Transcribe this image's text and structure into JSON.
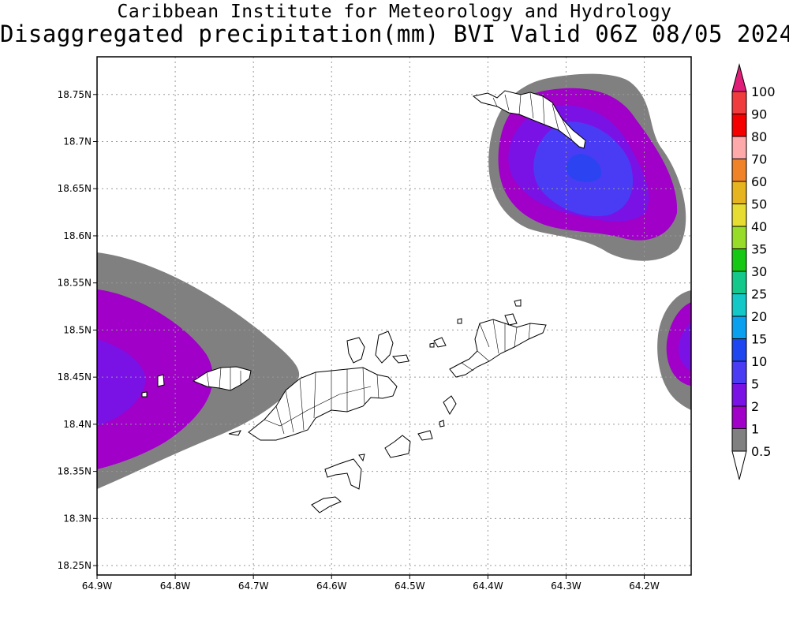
{
  "header": {
    "institute": "Caribbean Institute for Meteorology and Hydrology",
    "product": "Disaggregated precipitation(mm) BVI Valid 06Z 08/05 2024"
  },
  "map": {
    "lat_range": [
      18.24,
      18.79
    ],
    "lon_range": [
      -64.9,
      -64.14
    ],
    "lat_ticks": [
      {
        "value": 18.25,
        "label": "18.25N"
      },
      {
        "value": 18.3,
        "label": "18.3N"
      },
      {
        "value": 18.35,
        "label": "18.35N"
      },
      {
        "value": 18.4,
        "label": "18.4N"
      },
      {
        "value": 18.45,
        "label": "18.45N"
      },
      {
        "value": 18.5,
        "label": "18.5N"
      },
      {
        "value": 18.55,
        "label": "18.55N"
      },
      {
        "value": 18.6,
        "label": "18.6N"
      },
      {
        "value": 18.65,
        "label": "18.65N"
      },
      {
        "value": 18.7,
        "label": "18.7N"
      },
      {
        "value": 18.75,
        "label": "18.75N"
      }
    ],
    "lon_ticks": [
      {
        "value": -64.9,
        "label": "64.9W"
      },
      {
        "value": -64.8,
        "label": "64.8W"
      },
      {
        "value": -64.7,
        "label": "64.7W"
      },
      {
        "value": -64.6,
        "label": "64.6W"
      },
      {
        "value": -64.5,
        "label": "64.5W"
      },
      {
        "value": -64.4,
        "label": "64.4W"
      },
      {
        "value": -64.3,
        "label": "64.3W"
      },
      {
        "value": -64.2,
        "label": "64.2W"
      }
    ],
    "grid": true,
    "precipitation_cells": [
      {
        "name": "west",
        "center_lon": -64.86,
        "center_lat": 18.45,
        "max_level": "2"
      },
      {
        "name": "northeast",
        "center_lon": -64.28,
        "center_lat": 18.665,
        "max_level": "10"
      },
      {
        "name": "east",
        "center_lon": -64.14,
        "center_lat": 18.48,
        "max_level": "2"
      }
    ]
  },
  "colorbar": {
    "levels": [
      {
        "label": "0.5",
        "color": "#ffffff"
      },
      {
        "label": "1",
        "color": "#808080"
      },
      {
        "label": "2",
        "color": "#a000c8"
      },
      {
        "label": "5",
        "color": "#7a12e6"
      },
      {
        "label": "10",
        "color": "#4a3cf5"
      },
      {
        "label": "15",
        "color": "#1e46f0"
      },
      {
        "label": "20",
        "color": "#0aa0f0"
      },
      {
        "label": "25",
        "color": "#14c8c8"
      },
      {
        "label": "30",
        "color": "#14c88c"
      },
      {
        "label": "35",
        "color": "#14c814"
      },
      {
        "label": "40",
        "color": "#96dc28"
      },
      {
        "label": "50",
        "color": "#e6dc32"
      },
      {
        "label": "60",
        "color": "#e6b41e"
      },
      {
        "label": "70",
        "color": "#f08228"
      },
      {
        "label": "80",
        "color": "#ffaaaa"
      },
      {
        "label": "90",
        "color": "#f50000"
      },
      {
        "label": "100",
        "color": "#f03c3c"
      }
    ],
    "top_arrow_color": "#e01e78"
  }
}
